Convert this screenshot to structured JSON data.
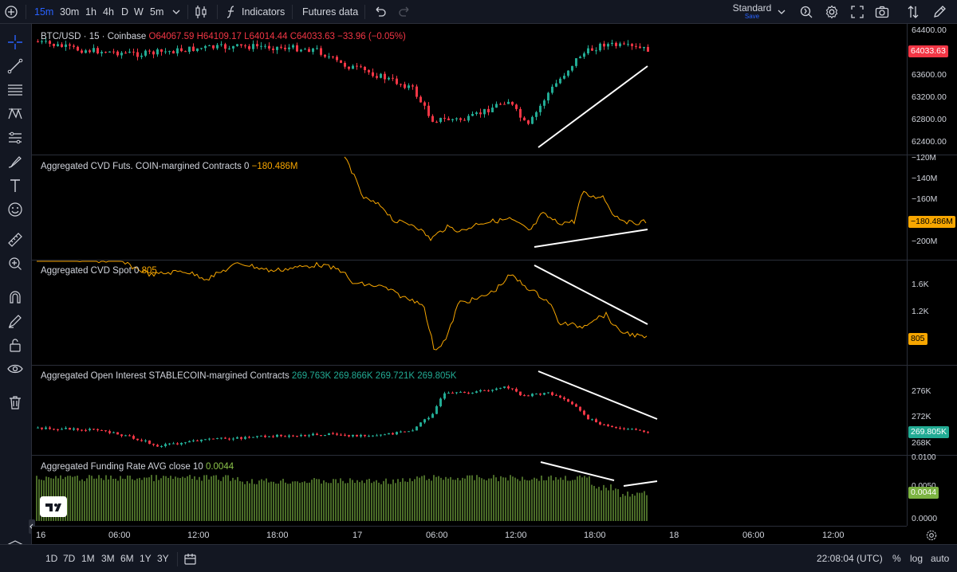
{
  "toolbar": {
    "intervals": [
      "15m",
      "30m",
      "1h",
      "4h",
      "D",
      "W",
      "5m"
    ],
    "indicators_label": "Indicators",
    "futures_data_label": "Futures data",
    "layout_name": "Standard",
    "layout_save": "Save"
  },
  "panes": {
    "price": {
      "title": "BTC/USD · 15 · Coinbase",
      "open": "O64067.59",
      "high": "H64109.17",
      "low": "L64014.44",
      "close": "C64033.63",
      "change": "−33.96 (−0.05%)",
      "axis": [
        "64400.00",
        "63600.00",
        "63200.00",
        "62800.00",
        "62400.00"
      ],
      "last": "64033.63",
      "last_color": "#f23645"
    },
    "cvd_futs": {
      "title": "Aggregated CVD Futs. COIN-margined Contracts 0",
      "value": "−180.486M",
      "axis": [
        "−120M",
        "−140M",
        "−160M",
        "−200M"
      ],
      "last": "−180.486M"
    },
    "cvd_spot": {
      "title": "Aggregated CVD Spot 0",
      "value": "805",
      "axis": [
        "1.6K",
        "1.2K"
      ],
      "last": "805"
    },
    "open_interest": {
      "title": "Aggregated Open Interest STABLECOIN-margined Contracts",
      "values": "269.763K  269.866K  269.721K  269.805K",
      "axis": [
        "276K",
        "272K",
        "268K"
      ],
      "last": "269.805K"
    },
    "funding": {
      "title": "Aggregated Funding Rate AVG close 10",
      "value": "0.0044",
      "axis": [
        "0.0100",
        "0.0050",
        "0.0000"
      ],
      "last": "0.0044"
    }
  },
  "time_axis": [
    "16",
    "06:00",
    "12:00",
    "18:00",
    "17",
    "06:00",
    "12:00",
    "18:00",
    "18",
    "06:00",
    "12:00"
  ],
  "bottom": {
    "ranges": [
      "1D",
      "7D",
      "1M",
      "3M",
      "6M",
      "1Y",
      "3Y"
    ],
    "clock": "22:08:04 (UTC)",
    "percent": "%",
    "log": "log",
    "auto": "auto"
  },
  "colors": {
    "up": "#22ab94",
    "down": "#f23645",
    "cvd": "#f7a600",
    "funding": "#7cb342",
    "accent": "#2962ff"
  }
}
